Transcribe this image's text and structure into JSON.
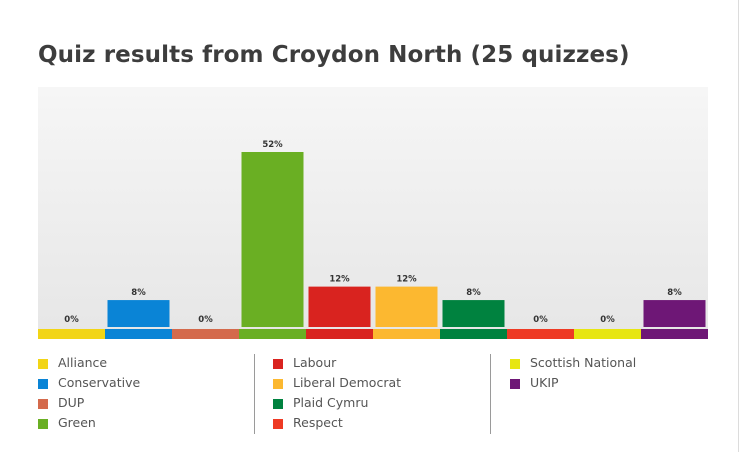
{
  "chart_data": {
    "type": "bar",
    "title": "Quiz results from Croydon North (25 quizzes)",
    "xlabel": "",
    "ylabel": "",
    "ylim": [
      0,
      60
    ],
    "grid": false,
    "legend_position": "bottom",
    "categories": [
      "Alliance",
      "Conservative",
      "DUP",
      "Green",
      "Labour",
      "Liberal Democrat",
      "Plaid Cymru",
      "Respect",
      "Scottish National",
      "UKIP"
    ],
    "values": [
      0,
      8,
      0,
      52,
      12,
      12,
      8,
      0,
      0,
      8
    ],
    "data_labels": [
      "0%",
      "8%",
      "0%",
      "52%",
      "12%",
      "12%",
      "8%",
      "0%",
      "0%",
      "8%"
    ],
    "colors": [
      "#f2d516",
      "#0a84d6",
      "#d46a4c",
      "#6aaf23",
      "#d9231f",
      "#fcb830",
      "#00823f",
      "#ee3a24",
      "#e7e612",
      "#6e1776"
    ]
  },
  "legend": {
    "columns": [
      [
        {
          "label": "Alliance",
          "color": "#f2d516"
        },
        {
          "label": "Conservative",
          "color": "#0a84d6"
        },
        {
          "label": "DUP",
          "color": "#d46a4c"
        },
        {
          "label": "Green",
          "color": "#6aaf23"
        }
      ],
      [
        {
          "label": "Labour",
          "color": "#d9231f"
        },
        {
          "label": "Liberal Democrat",
          "color": "#fcb830"
        },
        {
          "label": "Plaid Cymru",
          "color": "#00823f"
        },
        {
          "label": "Respect",
          "color": "#ee3a24"
        }
      ],
      [
        {
          "label": "Scottish National",
          "color": "#e7e612"
        },
        {
          "label": "UKIP",
          "color": "#6e1776"
        }
      ]
    ]
  }
}
